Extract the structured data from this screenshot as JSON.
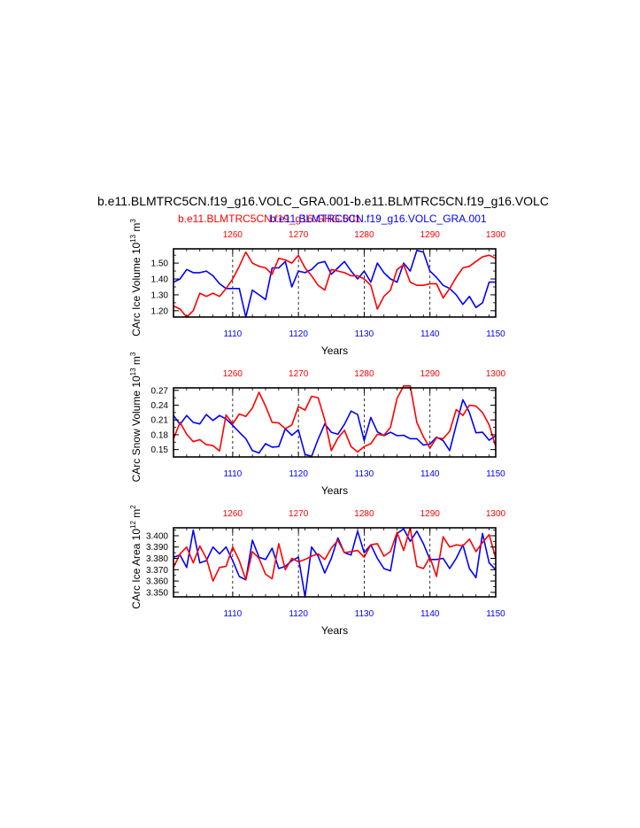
{
  "title": "b.e11.BLMTRC5CN.f19_g16.VOLC_GRA.001-b.e11.BLMTRC5CN.f19_g16.VOLC",
  "subtitle_red": "b.e11.BLMTRC5CN.f19_g16.GHG.001",
  "subtitle_blue": "b.e11.BLMTRC5CN.f19_g16.VOLC_GRA.001",
  "colors": {
    "red": "#ff0000",
    "blue": "#0000ff",
    "axis": "#000000",
    "grid": "#000000"
  },
  "chart_data": [
    {
      "type": "line",
      "ylabel_main": "CArc Ice Volume 10",
      "ylabel_exp": "13",
      "ylabel_unit": "m",
      "ylabel_unit_exp": "3",
      "xlabel": "Years",
      "grid": "vertical dashed",
      "ylim": [
        1.16,
        1.59
      ],
      "yticks": [
        1.2,
        1.3,
        1.4,
        1.5
      ],
      "ytick_labels": [
        "1.20",
        "1.30",
        "1.40",
        "1.50"
      ],
      "x_bottom": {
        "range": [
          1101,
          1150
        ],
        "ticks": [
          1110,
          1120,
          1130,
          1140,
          1150
        ],
        "labels": [
          "1110",
          "1120",
          "1130",
          "1140",
          "1150"
        ]
      },
      "x_top": {
        "range": [
          1251,
          1300
        ],
        "ticks": [
          1260,
          1270,
          1280,
          1290,
          1300
        ],
        "labels": [
          "1260",
          "1270",
          "1280",
          "1290",
          "1300"
        ]
      },
      "series": [
        {
          "color": "blue",
          "axis": "bottom",
          "values": [
            1.38,
            1.4,
            1.46,
            1.44,
            1.44,
            1.45,
            1.42,
            1.37,
            1.34,
            1.34,
            1.34,
            1.16,
            1.33,
            1.3,
            1.27,
            1.47,
            1.47,
            1.51,
            1.35,
            1.45,
            1.44,
            1.46,
            1.5,
            1.51,
            1.43,
            1.47,
            1.51,
            1.45,
            1.4,
            1.45,
            1.38,
            1.5,
            1.44,
            1.4,
            1.38,
            1.5,
            1.45,
            1.58,
            1.57,
            1.45,
            1.41,
            1.36,
            1.34,
            1.3,
            1.24,
            1.29,
            1.22,
            1.25,
            1.38,
            1.38
          ]
        },
        {
          "color": "red",
          "axis": "top",
          "values": [
            1.23,
            1.21,
            1.16,
            1.2,
            1.31,
            1.29,
            1.31,
            1.29,
            1.34,
            1.4,
            1.48,
            1.57,
            1.5,
            1.48,
            1.47,
            1.43,
            1.53,
            1.52,
            1.5,
            1.55,
            1.47,
            1.42,
            1.36,
            1.33,
            1.46,
            1.45,
            1.44,
            1.42,
            1.42,
            1.4,
            1.36,
            1.21,
            1.29,
            1.33,
            1.46,
            1.49,
            1.38,
            1.36,
            1.36,
            1.37,
            1.37,
            1.28,
            1.34,
            1.41,
            1.47,
            1.48,
            1.51,
            1.54,
            1.55,
            1.53
          ]
        }
      ]
    },
    {
      "type": "line",
      "ylabel_main": "CArc Snow Volume 10",
      "ylabel_exp": "13",
      "ylabel_unit": "m",
      "ylabel_unit_exp": "3",
      "xlabel": "Years",
      "grid": "vertical dashed",
      "ylim": [
        0.135,
        0.275
      ],
      "yticks": [
        0.15,
        0.18,
        0.21,
        0.24,
        0.27
      ],
      "ytick_labels": [
        "0.15",
        "0.18",
        "0.21",
        "0.24",
        "0.27"
      ],
      "x_bottom": {
        "range": [
          1101,
          1150
        ],
        "ticks": [
          1110,
          1120,
          1130,
          1140,
          1150
        ],
        "labels": [
          "1110",
          "1120",
          "1130",
          "1140",
          "1150"
        ]
      },
      "x_top": {
        "range": [
          1251,
          1300
        ],
        "ticks": [
          1260,
          1270,
          1280,
          1290,
          1300
        ],
        "labels": [
          "1260",
          "1270",
          "1280",
          "1290",
          "1300"
        ]
      },
      "series": [
        {
          "color": "blue",
          "axis": "bottom",
          "values": [
            0.219,
            0.201,
            0.219,
            0.205,
            0.202,
            0.221,
            0.209,
            0.219,
            0.212,
            0.199,
            0.185,
            0.172,
            0.148,
            0.143,
            0.162,
            0.155,
            0.156,
            0.192,
            0.179,
            0.19,
            0.14,
            0.136,
            0.171,
            0.202,
            0.185,
            0.181,
            0.201,
            0.228,
            0.221,
            0.168,
            0.215,
            0.186,
            0.178,
            0.185,
            0.178,
            0.179,
            0.172,
            0.172,
            0.159,
            0.161,
            0.175,
            0.168,
            0.148,
            0.2,
            0.251,
            0.225,
            0.184,
            0.185,
            0.169,
            0.178
          ]
        },
        {
          "color": "red",
          "axis": "top",
          "values": [
            0.172,
            0.205,
            0.181,
            0.166,
            0.17,
            0.16,
            0.158,
            0.147,
            0.22,
            0.202,
            0.222,
            0.217,
            0.234,
            0.266,
            0.238,
            0.205,
            0.204,
            0.192,
            0.2,
            0.237,
            0.23,
            0.258,
            0.255,
            0.21,
            0.148,
            0.173,
            0.189,
            0.156,
            0.145,
            0.156,
            0.162,
            0.181,
            0.179,
            0.195,
            0.254,
            0.279,
            0.279,
            0.205,
            0.176,
            0.153,
            0.174,
            0.172,
            0.187,
            0.231,
            0.219,
            0.24,
            0.238,
            0.225,
            0.2,
            0.156
          ]
        }
      ]
    },
    {
      "type": "line",
      "ylabel_main": "CArc Ice Area 10",
      "ylabel_exp": "12",
      "ylabel_unit": "m",
      "ylabel_unit_exp": "2",
      "xlabel": "Years",
      "grid": "vertical dashed",
      "ylim": [
        3.346,
        3.407
      ],
      "yticks": [
        3.35,
        3.36,
        3.37,
        3.38,
        3.39,
        3.4
      ],
      "ytick_labels": [
        "3.350",
        "3.360",
        "3.370",
        "3.380",
        "3.390",
        "3.400"
      ],
      "x_bottom": {
        "range": [
          1101,
          1150
        ],
        "ticks": [
          1110,
          1120,
          1130,
          1140,
          1150
        ],
        "labels": [
          "1110",
          "1120",
          "1130",
          "1140",
          "1150"
        ]
      },
      "x_top": {
        "range": [
          1251,
          1300
        ],
        "ticks": [
          1260,
          1270,
          1280,
          1290,
          1300
        ],
        "labels": [
          "1260",
          "1270",
          "1280",
          "1290",
          "1300"
        ]
      },
      "series": [
        {
          "color": "blue",
          "axis": "bottom",
          "values": [
            3.381,
            3.383,
            3.372,
            3.405,
            3.376,
            3.378,
            3.39,
            3.384,
            3.39,
            3.378,
            3.364,
            3.361,
            3.396,
            3.381,
            3.379,
            3.389,
            3.371,
            3.373,
            3.378,
            3.381,
            3.346,
            3.39,
            3.382,
            3.367,
            3.38,
            3.398,
            3.385,
            3.383,
            3.404,
            3.385,
            3.392,
            3.38,
            3.371,
            3.369,
            3.402,
            3.406,
            3.395,
            3.404,
            3.393,
            3.379,
            3.379,
            3.38,
            3.371,
            3.38,
            3.392,
            3.371,
            3.363,
            3.402,
            3.376,
            3.37
          ]
        },
        {
          "color": "red",
          "axis": "top",
          "values": [
            3.372,
            3.384,
            3.39,
            3.376,
            3.391,
            3.38,
            3.36,
            3.372,
            3.373,
            3.39,
            3.378,
            3.361,
            3.386,
            3.38,
            3.366,
            3.362,
            3.393,
            3.37,
            3.38,
            3.377,
            3.379,
            3.382,
            3.384,
            3.379,
            3.389,
            3.396,
            3.385,
            3.386,
            3.387,
            3.381,
            3.392,
            3.393,
            3.382,
            3.386,
            3.403,
            3.387,
            3.407,
            3.373,
            3.371,
            3.381,
            3.364,
            3.399,
            3.39,
            3.392,
            3.391,
            3.397,
            3.386,
            3.394,
            3.401,
            3.38
          ]
        }
      ]
    }
  ]
}
